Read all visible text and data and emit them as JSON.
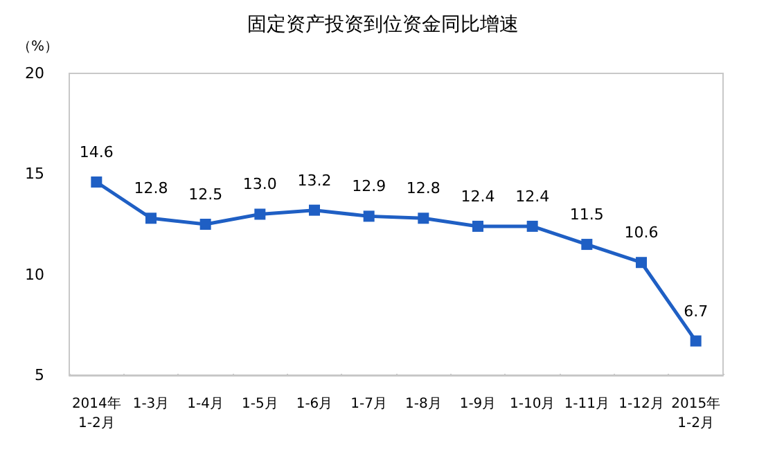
{
  "chart_data": {
    "type": "line",
    "title": "固定资产投资到位资金同比增速",
    "ylabel": "（%）",
    "categories": [
      "2014年\n1-2月",
      "1-3月",
      "1-4月",
      "1-5月",
      "1-6月",
      "1-7月",
      "1-8月",
      "1-9月",
      "1-10月",
      "1-11月",
      "1-12月",
      "2015年\n1-2月"
    ],
    "series": [
      {
        "color": "#1f5fc4",
        "values": [
          14.6,
          12.8,
          12.5,
          13.0,
          13.2,
          12.9,
          12.8,
          12.4,
          12.4,
          11.5,
          10.6,
          6.7
        ],
        "value_labels": [
          "14.6",
          "12.8",
          "12.5",
          "13.0",
          "13.2",
          "12.9",
          "12.8",
          "12.4",
          "12.4",
          "11.5",
          "10.6",
          "6.7"
        ]
      }
    ],
    "ylim": [
      5,
      20
    ],
    "yticks": [
      5,
      10,
      15,
      20
    ],
    "grid": false,
    "marker": "square",
    "line_style": "solid"
  }
}
